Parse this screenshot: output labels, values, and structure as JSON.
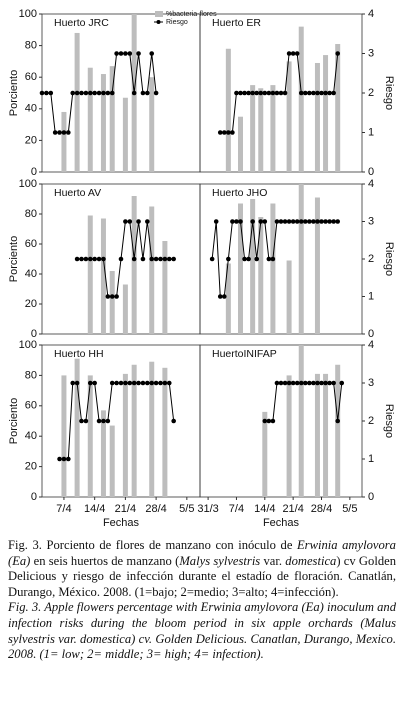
{
  "chart_data": [
    {
      "type": "bar",
      "title": "Huerto JRC",
      "ylabel": "Porciento",
      "xlim": [
        2,
        38
      ],
      "ylim": [
        0,
        100
      ],
      "yticks": [
        0,
        20,
        40,
        60,
        80,
        100
      ],
      "y2lim": [
        0,
        4
      ],
      "series": [
        {
          "name": "%bacteria-flores",
          "color": "#bdbdbd",
          "x": [
            7,
            10,
            13,
            16,
            18,
            21,
            23,
            27
          ],
          "values": [
            38,
            88,
            66,
            62,
            67,
            47,
            100,
            60
          ]
        },
        {
          "name": "Riesgo",
          "color": "#000000",
          "type": "line",
          "axis": "y2",
          "x": [
            2,
            3,
            4,
            5,
            6,
            7,
            8,
            9,
            10,
            11,
            12,
            13,
            14,
            15,
            16,
            17,
            18,
            19,
            20,
            21,
            22,
            23,
            24,
            25,
            26,
            27,
            28
          ],
          "values": [
            2,
            2,
            2,
            1,
            1,
            1,
            1,
            2,
            2,
            2,
            2,
            2,
            2,
            2,
            2,
            2,
            2,
            3,
            3,
            3,
            3,
            2,
            3,
            2,
            2,
            3,
            2
          ]
        }
      ]
    },
    {
      "type": "bar",
      "title": "Huerto ER",
      "y2label": "Riesgo",
      "xlim": [
        -2,
        38
      ],
      "ylim": [
        0,
        100
      ],
      "y2lim": [
        0,
        4
      ],
      "y2ticks": [
        0,
        1,
        2,
        3,
        4
      ],
      "series": [
        {
          "color": "#bdbdbd",
          "x": [
            5,
            8,
            11,
            13,
            16,
            20,
            23,
            27,
            29,
            32
          ],
          "values": [
            78,
            35,
            55,
            53,
            55,
            70,
            92,
            69,
            74,
            81
          ]
        },
        {
          "color": "#000000",
          "type": "line",
          "axis": "y2",
          "x": [
            3,
            4,
            5,
            6,
            7,
            8,
            9,
            10,
            11,
            12,
            13,
            14,
            15,
            16,
            17,
            18,
            19,
            20,
            21,
            22,
            23,
            24,
            25,
            26,
            27,
            28,
            29,
            30,
            31,
            32
          ],
          "values": [
            1,
            1,
            1,
            1,
            2,
            2,
            2,
            2,
            2,
            2,
            2,
            2,
            2,
            2,
            2,
            2,
            2,
            3,
            3,
            3,
            2,
            2,
            2,
            2,
            2,
            2,
            2,
            2,
            2,
            3
          ]
        }
      ]
    },
    {
      "type": "bar",
      "title": "Huerto AV",
      "ylabel": "Porciento",
      "xlim": [
        2,
        38
      ],
      "ylim": [
        0,
        100
      ],
      "yticks": [
        0,
        20,
        40,
        60,
        80,
        100
      ],
      "y2lim": [
        0,
        4
      ],
      "series": [
        {
          "color": "#bdbdbd",
          "x": [
            13,
            16,
            18,
            21,
            23,
            27,
            30
          ],
          "values": [
            79,
            77,
            42,
            33,
            92,
            85,
            62
          ]
        },
        {
          "color": "#000000",
          "type": "line",
          "axis": "y2",
          "x": [
            10,
            11,
            12,
            13,
            14,
            15,
            16,
            17,
            18,
            19,
            20,
            21,
            22,
            23,
            24,
            25,
            26,
            27,
            28,
            29,
            30,
            31,
            32
          ],
          "values": [
            2,
            2,
            2,
            2,
            2,
            2,
            2,
            1,
            1,
            1,
            2,
            3,
            3,
            2,
            3,
            2,
            3,
            2,
            2,
            2,
            2,
            2,
            2
          ]
        }
      ]
    },
    {
      "type": "bar",
      "title": "Huerto JHO",
      "y2label": "Riesgo",
      "xlim": [
        -2,
        38
      ],
      "ylim": [
        0,
        100
      ],
      "y2lim": [
        0,
        4
      ],
      "y2ticks": [
        0,
        1,
        2,
        3,
        4
      ],
      "series": [
        {
          "color": "#bdbdbd",
          "x": [
            5,
            8,
            11,
            13,
            16,
            20,
            23,
            27
          ],
          "values": [
            47,
            87,
            90,
            78,
            87,
            49,
            100,
            91
          ]
        },
        {
          "color": "#000000",
          "type": "line",
          "axis": "y2",
          "x": [
            1,
            2,
            3,
            4,
            5,
            6,
            7,
            8,
            9,
            10,
            11,
            12,
            13,
            14,
            15,
            16,
            17,
            18,
            19,
            20,
            21,
            22,
            23,
            24,
            25,
            26,
            27,
            28,
            29,
            30,
            31,
            32
          ],
          "values": [
            2,
            3,
            1,
            1,
            2,
            3,
            3,
            3,
            2,
            2,
            3,
            2,
            3,
            3,
            2,
            2,
            3,
            3,
            3,
            3,
            3,
            3,
            3,
            3,
            3,
            3,
            3,
            3,
            3,
            3,
            3,
            3
          ]
        }
      ]
    },
    {
      "type": "bar",
      "title": "Huerto HH",
      "ylabel": "Porciento",
      "xlabel": "Fechas",
      "xlim": [
        2,
        38
      ],
      "ylim": [
        0,
        100
      ],
      "yticks": [
        0,
        20,
        40,
        60,
        80,
        100
      ],
      "y2lim": [
        0,
        4
      ],
      "xticks": [
        {
          "value": 7,
          "label": "7/4"
        },
        {
          "value": 14,
          "label": "14/4"
        },
        {
          "value": 21,
          "label": "21/4"
        },
        {
          "value": 28,
          "label": "28/4"
        },
        {
          "value": 35,
          "label": "5/5"
        }
      ],
      "series": [
        {
          "color": "#bdbdbd",
          "x": [
            7,
            10,
            13,
            16,
            18,
            21,
            23,
            27,
            30
          ],
          "values": [
            80,
            91,
            80,
            57,
            47,
            81,
            87,
            89,
            85
          ]
        },
        {
          "color": "#000000",
          "type": "line",
          "axis": "y2",
          "x": [
            6,
            7,
            8,
            9,
            10,
            11,
            12,
            13,
            14,
            15,
            16,
            17,
            18,
            19,
            20,
            21,
            22,
            23,
            24,
            25,
            26,
            27,
            28,
            29,
            30,
            31,
            32
          ],
          "values": [
            1,
            1,
            1,
            3,
            3,
            2,
            2,
            3,
            3,
            2,
            2,
            2,
            3,
            3,
            3,
            3,
            3,
            3,
            3,
            3,
            3,
            3,
            3,
            3,
            3,
            3,
            2
          ]
        }
      ]
    },
    {
      "type": "bar",
      "title": "HuertoINIFAP",
      "y2label": "Riesgo",
      "xlabel": "Fechas",
      "xlim": [
        -2,
        38
      ],
      "ylim": [
        0,
        100
      ],
      "y2lim": [
        0,
        4
      ],
      "y2ticks": [
        0,
        1,
        2,
        3,
        4
      ],
      "xticks": [
        {
          "value": 0,
          "label": "31/3"
        },
        {
          "value": 7,
          "label": "7/4"
        },
        {
          "value": 14,
          "label": "14/4"
        },
        {
          "value": 21,
          "label": "21/4"
        },
        {
          "value": 28,
          "label": "28/4"
        },
        {
          "value": 35,
          "label": "5/5"
        }
      ],
      "series": [
        {
          "color": "#bdbdbd",
          "x": [
            14,
            20,
            23,
            27,
            29,
            32
          ],
          "values": [
            56,
            80,
            100,
            81,
            81,
            87
          ]
        },
        {
          "color": "#000000",
          "type": "line",
          "axis": "y2",
          "x": [
            14,
            15,
            16,
            17,
            18,
            19,
            20,
            21,
            22,
            23,
            24,
            25,
            26,
            27,
            28,
            29,
            30,
            31,
            32,
            33
          ],
          "values": [
            2,
            2,
            2,
            3,
            3,
            3,
            3,
            3,
            3,
            3,
            3,
            3,
            3,
            3,
            3,
            3,
            3,
            3,
            2,
            3
          ]
        }
      ]
    }
  ],
  "caption": {
    "es": [
      {
        "text": "Fig. 3. Porciento de flores de manzano con inóculo de ",
        "italic": false
      },
      {
        "text": "Erwinia amylovora (Ea)",
        "italic": true
      },
      {
        "text": " en seis huertos de manzano (",
        "italic": false
      },
      {
        "text": "Malys sylvestris",
        "italic": true
      },
      {
        "text": " var. ",
        "italic": false
      },
      {
        "text": "domestica",
        "italic": true
      },
      {
        "text": ") cv Golden Delicious y riesgo de infección durante el estadío de floración. Canatlán, Durango, México. 2008. (1=bajo; 2=medio; 3=alto; 4=infección).",
        "italic": false
      }
    ],
    "en": "Fig. 3. Apple flowers percentage with Erwinia amylovora (Ea) inoculum and infection risks during the bloom period in six apple orchards (Malus sylvestris var. domestica) cv. Golden Delicious. Canatlan, Durango, Mexico. 2008. (1= low; 2= middle; 3= high; 4= infection)."
  }
}
